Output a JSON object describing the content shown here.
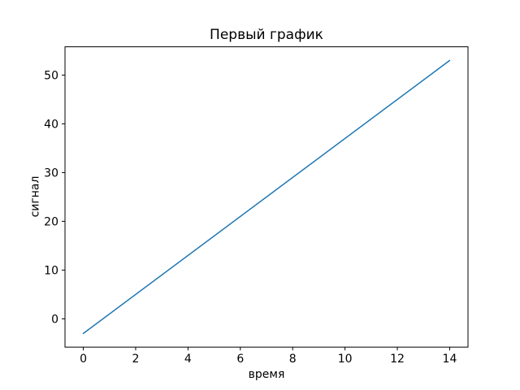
{
  "figure": {
    "background": "#ffffff",
    "frame_color": "#000000",
    "tick_color": "#000000",
    "text_color": "#000000"
  },
  "chart_data": {
    "type": "line",
    "title": "Первый график",
    "xlabel": "время",
    "ylabel": "сигнал",
    "xlim": [
      -0.7,
      14.7
    ],
    "ylim": [
      -5.8,
      55.8
    ],
    "xticks": [
      0,
      2,
      4,
      6,
      8,
      10,
      12,
      14
    ],
    "yticks": [
      0,
      10,
      20,
      30,
      40,
      50
    ],
    "grid": false,
    "legend_position": "none",
    "series": [
      {
        "color": "#1f77b4",
        "line_width": 1.5,
        "x": [
          0,
          14
        ],
        "y": [
          -3,
          53
        ]
      }
    ]
  }
}
